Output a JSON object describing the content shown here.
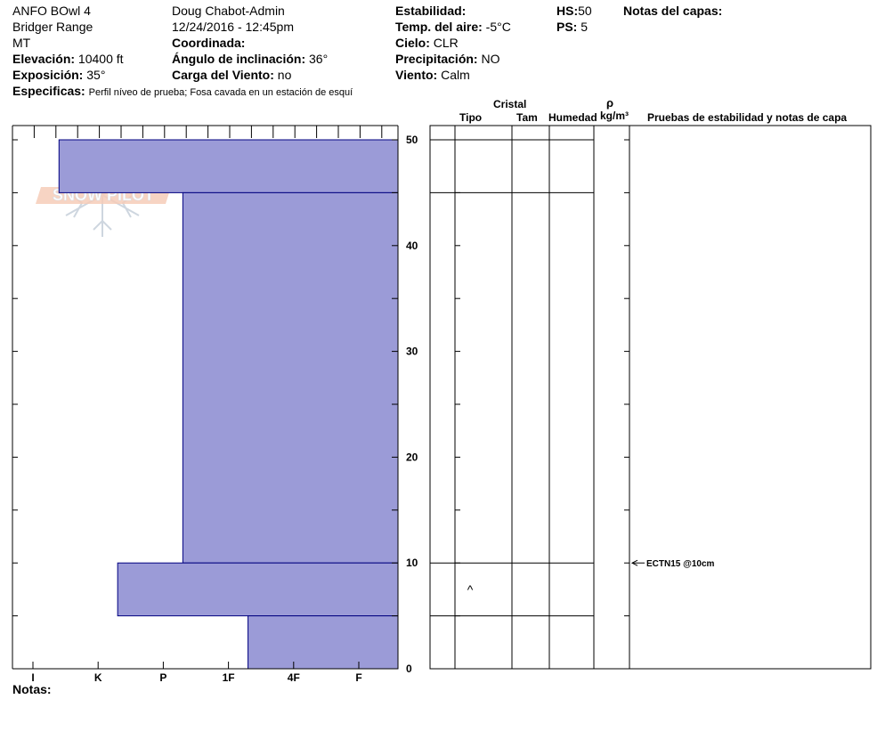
{
  "header": {
    "location": "ANFO BOwl 4",
    "range": "Bridger Range",
    "state": "MT",
    "elevation_label": "Elevación:",
    "elevation_value": "10400 ft",
    "exposure_label": "Exposición:",
    "exposure_value": "35°",
    "specifics_label": "Especificas:",
    "specifics_value": "Perfil níveo de prueba; Fosa cavada en un estación de esquí",
    "observer": "Doug Chabot-Admin",
    "datetime": "12/24/2016 - 12:45pm",
    "coord_label": "Coordinada:",
    "slope_label": "Ángulo de inclinación:",
    "slope_value": "36°",
    "wind_load_label": "Carga del Viento:",
    "wind_load_value": "no",
    "stability_label": "Estabilidad:",
    "air_temp_label": "Temp. del aire:",
    "air_temp_value": "-5°C",
    "sky_label": "Cielo:",
    "sky_value": "CLR",
    "precip_label": "Precipitación:",
    "precip_value": "NO",
    "wind_label": "Viento:",
    "wind_value": "Calm",
    "hs_label": "HS:",
    "hs_value": "50",
    "ps_label": "PS:",
    "ps_value": "5",
    "layer_notes_label": "Notas del capas:"
  },
  "logo": {
    "text": "SNOW PILOT"
  },
  "columns": {
    "crystal": "Cristal",
    "type": "Tipo",
    "size": "Tam",
    "moisture": "Humedad",
    "density_symbol": "ρ",
    "density_unit": "kg/m³",
    "tests": "Pruebas de estabilidad y notas de capa"
  },
  "notes_label": "Notas:",
  "colors": {
    "fill": "#9b9bd7",
    "stroke": "#000080"
  },
  "chart_data": {
    "type": "bar",
    "orientation": "horizontal",
    "hardness_categories": [
      "I",
      "K",
      "P",
      "1F",
      "4F",
      "F"
    ],
    "y_ticks": [
      0,
      10,
      20,
      30,
      40,
      50
    ],
    "ylim": [
      0,
      50
    ],
    "layers": [
      {
        "bottom": 45,
        "top": 50,
        "hardness": 0.4
      },
      {
        "bottom": 10,
        "top": 45,
        "hardness": 2.3
      },
      {
        "bottom": 5,
        "top": 10,
        "hardness": 1.3
      },
      {
        "bottom": 0,
        "top": 5,
        "hardness": 3.3
      }
    ],
    "layer_boundaries": [
      50,
      45,
      10,
      5
    ],
    "crystal_symbol": {
      "glyph": "^",
      "height": 7.5
    },
    "stability_tests": [
      {
        "height": 10,
        "label": "ECTN15 @10cm"
      }
    ]
  }
}
